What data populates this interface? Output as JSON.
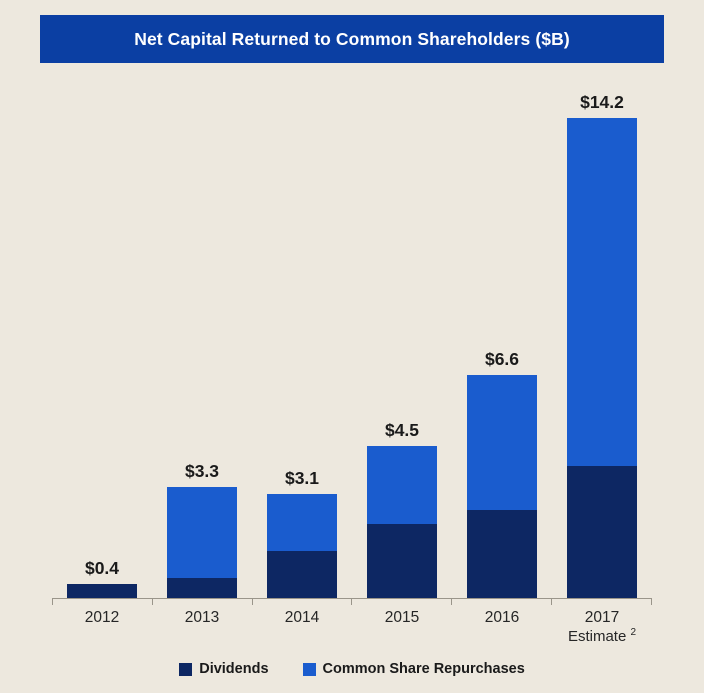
{
  "colors": {
    "background": "#EDE8DE",
    "header_bg": "#0B3FA3",
    "dividends": "#0D2763",
    "repurchases": "#1A5CCE",
    "axis": "#9a958a",
    "text": "#1a1a1a"
  },
  "chart_data": {
    "type": "bar",
    "stacked": true,
    "title": "Net Capital Returned to Common Shareholders ($B)",
    "categories": [
      "2012",
      "2013",
      "2014",
      "2015",
      "2016",
      "2017"
    ],
    "category_sublabels": [
      "",
      "",
      "",
      "",
      "",
      "Estimate"
    ],
    "sublabel_superscript": "2",
    "totals": [
      0.4,
      3.3,
      3.1,
      4.5,
      6.6,
      14.2
    ],
    "totals_labels": [
      "$0.4",
      "$3.3",
      "$3.1",
      "$4.5",
      "$6.6",
      "$14.2"
    ],
    "series": [
      {
        "name": "Dividends",
        "color": "#0D2763",
        "values": [
          0.4,
          0.6,
          1.4,
          2.2,
          2.6,
          3.9
        ]
      },
      {
        "name": "Common Share Repurchases",
        "color": "#1A5CCE",
        "values": [
          0.0,
          2.7,
          1.7,
          2.3,
          4.0,
          10.3
        ]
      }
    ],
    "ylim": [
      0,
      15
    ],
    "grid": false,
    "legend_position": "bottom"
  }
}
